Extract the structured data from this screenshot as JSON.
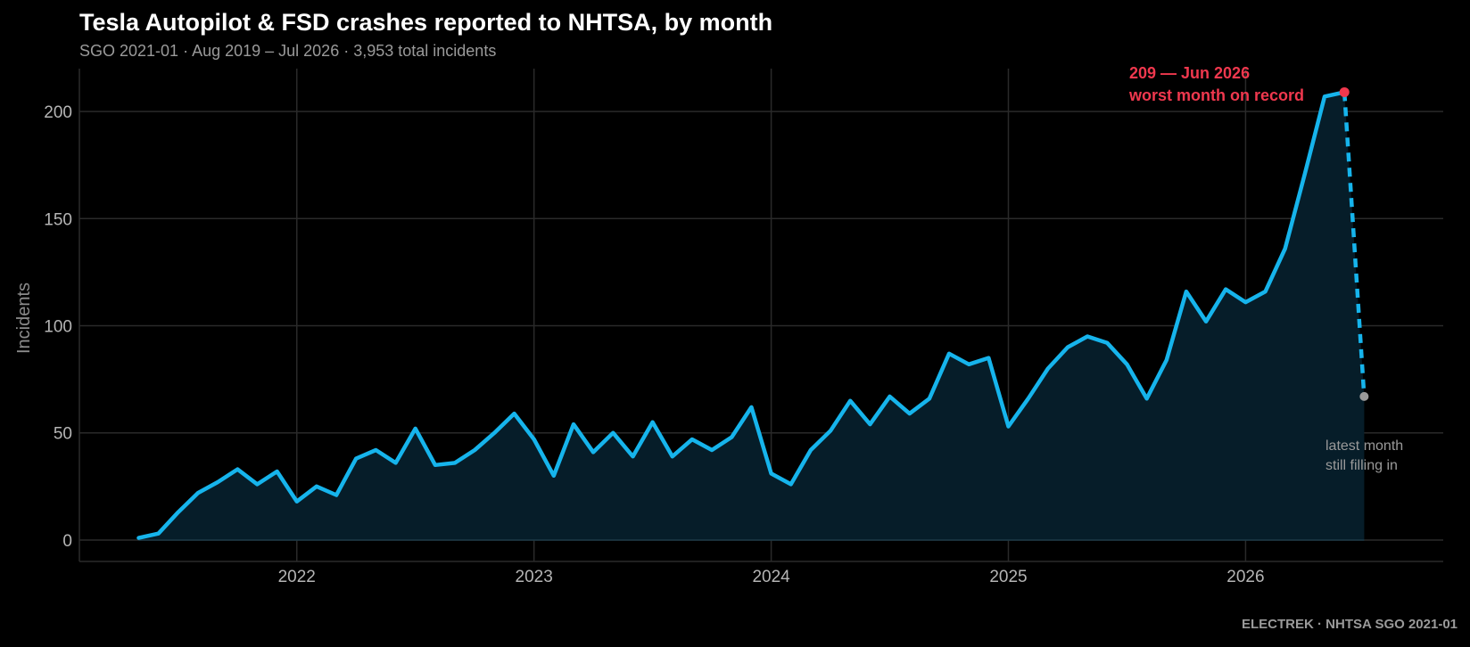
{
  "header": {
    "title": "Tesla Autopilot & FSD crashes reported to NHTSA, by month",
    "subtitle": "SGO 2021-01 · Aug 2019 – Jul 2026 · 3,953 total incidents"
  },
  "footer": {
    "source": "ELECTREK · NHTSA SGO 2021-01"
  },
  "colors": {
    "line": "#16b4ec",
    "fill": "#061d29",
    "peak": "#f0384e",
    "latest": "#9a9a9a",
    "grid": "#2a2a2a",
    "tick_text": "#b5b5b5"
  },
  "chart_data": {
    "type": "line",
    "ylabel": "Incidents",
    "xlabel": "",
    "ylim": [
      -10,
      220
    ],
    "yticks": [
      0,
      50,
      100,
      150,
      200
    ],
    "xticks": [
      {
        "label": "2022",
        "date": "2022-01"
      },
      {
        "label": "2023",
        "date": "2023-01"
      },
      {
        "label": "2024",
        "date": "2024-01"
      },
      {
        "label": "2025",
        "date": "2025-01"
      },
      {
        "label": "2026",
        "date": "2026-01"
      }
    ],
    "xlim": [
      "2021-02",
      "2026-11"
    ],
    "grid": true,
    "series": [
      {
        "x": [
          "2021-05",
          "2021-06",
          "2021-07",
          "2021-08",
          "2021-09",
          "2021-10",
          "2021-11",
          "2021-12",
          "2022-01",
          "2022-02",
          "2022-03",
          "2022-04",
          "2022-05",
          "2022-06",
          "2022-07",
          "2022-08",
          "2022-09",
          "2022-10",
          "2022-11",
          "2022-12",
          "2023-01",
          "2023-02",
          "2023-03",
          "2023-04",
          "2023-05",
          "2023-06",
          "2023-07",
          "2023-08",
          "2023-09",
          "2023-10",
          "2023-11",
          "2023-12",
          "2024-01",
          "2024-02",
          "2024-03",
          "2024-04",
          "2024-05",
          "2024-06",
          "2024-07",
          "2024-08",
          "2024-09",
          "2024-10",
          "2024-11",
          "2024-12",
          "2025-01",
          "2025-02",
          "2025-03",
          "2025-04",
          "2025-05",
          "2025-06",
          "2025-07",
          "2025-08",
          "2025-09",
          "2025-10",
          "2025-11",
          "2025-12",
          "2026-01",
          "2026-02",
          "2026-03",
          "2026-04",
          "2026-05",
          "2026-06"
        ],
        "values": [
          1,
          3,
          13,
          22,
          27,
          33,
          26,
          32,
          18,
          25,
          21,
          38,
          42,
          36,
          52,
          35,
          36,
          42,
          50,
          59,
          47,
          30,
          54,
          41,
          50,
          39,
          55,
          39,
          47,
          42,
          48,
          62,
          31,
          26,
          42,
          51,
          65,
          54,
          67,
          59,
          66,
          87,
          82,
          85,
          53,
          66,
          80,
          90,
          95,
          92,
          82,
          66,
          84,
          116,
          102,
          117,
          111,
          116,
          136,
          171,
          207,
          209
        ]
      }
    ],
    "partial_point": {
      "x": "2026-07",
      "value": 67
    },
    "annotations": {
      "peak_line1": "209 — Jun 2026",
      "peak_line2": "worst month on record",
      "latest_line1": "latest month",
      "latest_line2": "still filling in"
    }
  }
}
